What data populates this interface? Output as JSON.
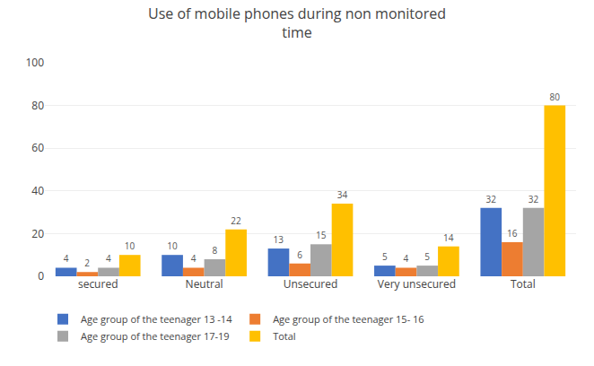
{
  "chart_data": {
    "type": "bar",
    "title": "Use of mobile phones during non monitored\ntime",
    "categories": [
      "secured",
      "Neutral",
      "Unsecured",
      "Very unsecured",
      "Total"
    ],
    "series": [
      {
        "name": "Age group of the teenager 13 -14",
        "color": "#4472C4",
        "values": [
          4,
          10,
          13,
          5,
          32
        ]
      },
      {
        "name": "Age group of the teenager 15- 16",
        "color": "#ED7D31",
        "values": [
          2,
          4,
          6,
          4,
          16
        ]
      },
      {
        "name": "Age group of the teenager 17-19",
        "color": "#A5A5A5",
        "values": [
          4,
          8,
          15,
          5,
          32
        ]
      },
      {
        "name": "Total",
        "color": "#FFC000",
        "values": [
          10,
          22,
          34,
          14,
          80
        ]
      }
    ],
    "ylim": [
      0,
      100
    ],
    "yticks": [
      0,
      20,
      40,
      60,
      80,
      100
    ],
    "grid": true,
    "data_labels": true,
    "legend": "bottom"
  }
}
